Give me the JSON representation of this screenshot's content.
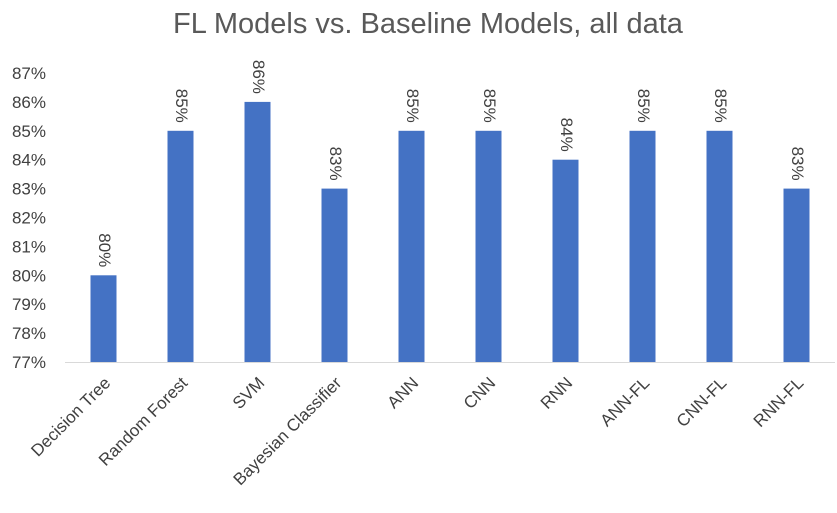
{
  "chart_data": {
    "type": "bar",
    "title": "FL Models vs. Baseline Models, all data",
    "xlabel": "",
    "ylabel": "",
    "categories": [
      "Decision Tree",
      "Random Forest",
      "SVM",
      "Bayesian Classifier",
      "ANN",
      "CNN",
      "RNN",
      "ANN-FL",
      "CNN-FL",
      "RNN-FL"
    ],
    "values": [
      80,
      85,
      86,
      83,
      85,
      85,
      84,
      85,
      85,
      83
    ],
    "data_labels": [
      "80%",
      "85%",
      "86%",
      "83%",
      "85%",
      "85%",
      "84%",
      "85%",
      "85%",
      "83%"
    ],
    "ylim": [
      77,
      87
    ],
    "yticks": [
      77,
      78,
      79,
      80,
      81,
      82,
      83,
      84,
      85,
      86,
      87
    ],
    "ytick_labels": [
      "77%",
      "78%",
      "79%",
      "80%",
      "81%",
      "82%",
      "83%",
      "84%",
      "85%",
      "86%",
      "87%"
    ],
    "grid": false,
    "legend": "none",
    "bar_color": "#4472c4"
  }
}
